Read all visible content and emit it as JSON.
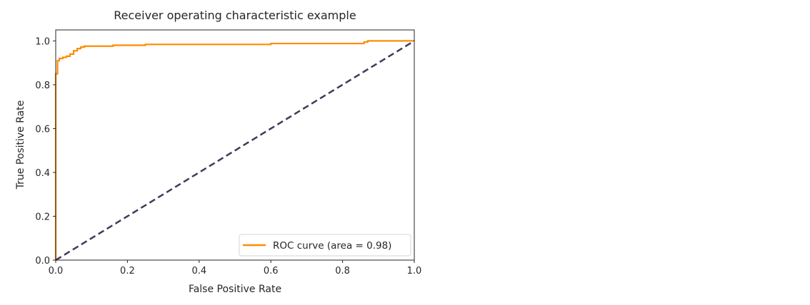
{
  "chart_data": {
    "type": "line",
    "title": "Receiver operating characteristic example",
    "xlabel": "False Positive Rate",
    "ylabel": "True Positive Rate",
    "xlim": [
      0.0,
      1.0
    ],
    "ylim": [
      0.0,
      1.05
    ],
    "xticks": [
      "0.0",
      "0.2",
      "0.4",
      "0.6",
      "0.8",
      "1.0"
    ],
    "yticks": [
      "0.0",
      "0.2",
      "0.4",
      "0.6",
      "0.8",
      "1.0"
    ],
    "grid": false,
    "legend_position": "lower-right",
    "series": [
      {
        "name": "ROC curve (area = 0.98)",
        "color": "#ff8c00",
        "style": "solid",
        "points": [
          [
            0.0,
            0.0
          ],
          [
            0.0,
            0.85
          ],
          [
            0.005,
            0.85
          ],
          [
            0.005,
            0.91
          ],
          [
            0.01,
            0.91
          ],
          [
            0.01,
            0.92
          ],
          [
            0.02,
            0.92
          ],
          [
            0.02,
            0.925
          ],
          [
            0.03,
            0.925
          ],
          [
            0.03,
            0.93
          ],
          [
            0.04,
            0.93
          ],
          [
            0.04,
            0.94
          ],
          [
            0.05,
            0.94
          ],
          [
            0.05,
            0.955
          ],
          [
            0.06,
            0.955
          ],
          [
            0.06,
            0.965
          ],
          [
            0.07,
            0.965
          ],
          [
            0.07,
            0.972
          ],
          [
            0.08,
            0.972
          ],
          [
            0.08,
            0.976
          ],
          [
            0.16,
            0.976
          ],
          [
            0.16,
            0.98
          ],
          [
            0.25,
            0.98
          ],
          [
            0.25,
            0.984
          ],
          [
            0.6,
            0.984
          ],
          [
            0.6,
            0.988
          ],
          [
            0.86,
            0.988
          ],
          [
            0.86,
            0.995
          ],
          [
            0.87,
            0.995
          ],
          [
            0.87,
            1.0
          ],
          [
            1.0,
            1.0
          ]
        ]
      },
      {
        "name": "",
        "color": "#3c3c5a",
        "style": "dashed",
        "points": [
          [
            0.0,
            0.0
          ],
          [
            1.0,
            1.0
          ]
        ]
      }
    ]
  }
}
